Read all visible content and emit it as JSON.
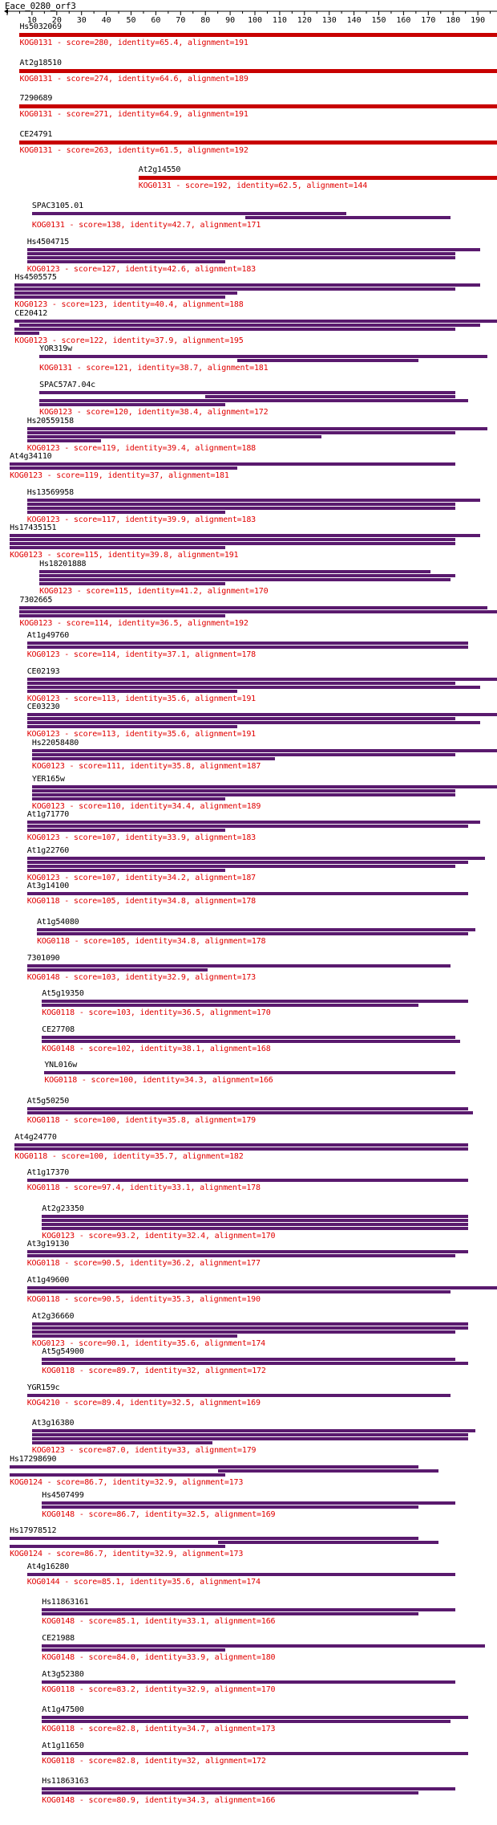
{
  "query": {
    "title": "Eace_0280_orf3",
    "length": 200,
    "axis_ticks": [
      10,
      20,
      30,
      40,
      50,
      60,
      70,
      80,
      90,
      100,
      110,
      120,
      130,
      140,
      150,
      160,
      170,
      180,
      190
    ]
  },
  "colors": {
    "kog0131": "#c80000",
    "other": "#5a1a6e",
    "label_text": "#e00000"
  },
  "hits": [
    {
      "name": "Hs5032069",
      "kog": "KOG0131",
      "score": "280",
      "identity": "65.4",
      "alignment": "191",
      "segments": [
        [
          5,
          198
        ]
      ]
    },
    {
      "name": "At2g18510",
      "kog": "KOG0131",
      "score": "274",
      "identity": "64.6",
      "alignment": "189",
      "segments": [
        [
          5,
          198
        ]
      ]
    },
    {
      "name": "7290689",
      "kog": "KOG0131",
      "score": "271",
      "identity": "64.9",
      "alignment": "191",
      "segments": [
        [
          5,
          198
        ]
      ]
    },
    {
      "name": "CE24791",
      "kog": "KOG0131",
      "score": "263",
      "identity": "61.5",
      "alignment": "192",
      "segments": [
        [
          5,
          198
        ]
      ]
    },
    {
      "name": "At2g14550",
      "kog": "KOG0131",
      "score": "192",
      "identity": "62.5",
      "alignment": "144",
      "segments": [
        [
          53,
          198
        ]
      ]
    },
    {
      "name": "SPAC3105.01",
      "kog": "KOG0131",
      "score": "138",
      "identity": "42.7",
      "alignment": "171",
      "segments": [
        [
          10,
          137
        ],
        [
          96,
          179
        ]
      ]
    },
    {
      "name": "Hs4504715",
      "kog": "KOG0123",
      "score": "127",
      "identity": "42.6",
      "alignment": "183",
      "segments": [
        [
          8,
          191
        ],
        [
          8,
          181
        ],
        [
          8,
          181
        ],
        [
          8,
          88
        ]
      ]
    },
    {
      "name": "Hs4505575",
      "kog": "KOG0123",
      "score": "123",
      "identity": "40.4",
      "alignment": "188",
      "segments": [
        [
          3,
          191
        ],
        [
          3,
          181
        ],
        [
          3,
          93
        ],
        [
          3,
          88
        ]
      ]
    },
    {
      "name": "CE20412",
      "kog": "KOG0123",
      "score": "122",
      "identity": "37.9",
      "alignment": "195",
      "segments": [
        [
          3,
          198
        ],
        [
          5,
          191
        ],
        [
          3,
          181
        ],
        [
          3,
          13
        ]
      ]
    },
    {
      "name": "YOR319w",
      "kog": "KOG0131",
      "score": "121",
      "identity": "38.7",
      "alignment": "181",
      "segments": [
        [
          13,
          194
        ],
        [
          93,
          166
        ]
      ]
    },
    {
      "name": "SPAC57A7.04c",
      "kog": "KOG0123",
      "score": "120",
      "identity": "38.4",
      "alignment": "172",
      "segments": [
        [
          13,
          181
        ],
        [
          80,
          181
        ],
        [
          13,
          186
        ],
        [
          13,
          88
        ]
      ]
    },
    {
      "name": "Hs20559158",
      "kog": "KOG0123",
      "score": "119",
      "identity": "39.4",
      "alignment": "188",
      "segments": [
        [
          8,
          194
        ],
        [
          8,
          181
        ],
        [
          8,
          127
        ],
        [
          8,
          38
        ]
      ]
    },
    {
      "name": "At4g34110",
      "kog": "KOG0123",
      "score": "119",
      "identity": "37",
      "alignment": "181",
      "segments": [
        [
          1,
          181
        ],
        [
          1,
          93
        ]
      ]
    },
    {
      "name": "Hs13569958",
      "kog": "KOG0123",
      "score": "117",
      "identity": "39.9",
      "alignment": "183",
      "segments": [
        [
          8,
          191
        ],
        [
          8,
          181
        ],
        [
          8,
          181
        ],
        [
          8,
          88
        ]
      ]
    },
    {
      "name": "Hs17435151",
      "kog": "KOG0123",
      "score": "115",
      "identity": "39.8",
      "alignment": "191",
      "segments": [
        [
          1,
          191
        ],
        [
          1,
          181
        ],
        [
          1,
          181
        ],
        [
          1,
          88
        ]
      ]
    },
    {
      "name": "Hs18201888",
      "kog": "KOG0123",
      "score": "115",
      "identity": "41.2",
      "alignment": "170",
      "segments": [
        [
          13,
          171
        ],
        [
          13,
          181
        ],
        [
          13,
          179
        ],
        [
          13,
          88
        ]
      ]
    },
    {
      "name": "7302665",
      "kog": "KOG0123",
      "score": "114",
      "identity": "36.5",
      "alignment": "192",
      "segments": [
        [
          5,
          194
        ],
        [
          5,
          198
        ],
        [
          5,
          88
        ]
      ]
    },
    {
      "name": "At1g49760",
      "kog": "KOG0123",
      "score": "114",
      "identity": "37.1",
      "alignment": "178",
      "segments": [
        [
          8,
          186
        ],
        [
          8,
          186
        ]
      ]
    },
    {
      "name": "CE02193",
      "kog": "KOG0123",
      "score": "113",
      "identity": "35.6",
      "alignment": "191",
      "segments": [
        [
          8,
          198
        ],
        [
          8,
          181
        ],
        [
          8,
          191
        ],
        [
          8,
          93
        ]
      ]
    },
    {
      "name": "CE03230",
      "kog": "KOG0123",
      "score": "113",
      "identity": "35.6",
      "alignment": "191",
      "segments": [
        [
          8,
          198
        ],
        [
          8,
          181
        ],
        [
          8,
          191
        ],
        [
          8,
          93
        ]
      ]
    },
    {
      "name": "Hs22058480",
      "kog": "KOG0123",
      "score": "111",
      "identity": "35.8",
      "alignment": "187",
      "segments": [
        [
          10,
          198
        ],
        [
          10,
          181
        ],
        [
          10,
          108
        ]
      ]
    },
    {
      "name": "YER165w",
      "kog": "KOG0123",
      "score": "110",
      "identity": "34.4",
      "alignment": "189",
      "segments": [
        [
          10,
          198
        ],
        [
          10,
          181
        ],
        [
          10,
          181
        ],
        [
          10,
          88
        ]
      ]
    },
    {
      "name": "At1g71770",
      "kog": "KOG0123",
      "score": "107",
      "identity": "33.9",
      "alignment": "183",
      "segments": [
        [
          8,
          191
        ],
        [
          8,
          186
        ],
        [
          8,
          88
        ]
      ]
    },
    {
      "name": "At1g22760",
      "kog": "KOG0123",
      "score": "107",
      "identity": "34.2",
      "alignment": "187",
      "segments": [
        [
          8,
          193
        ],
        [
          8,
          186
        ],
        [
          8,
          181
        ],
        [
          8,
          88
        ]
      ]
    },
    {
      "name": "At3g14100",
      "kog": "KOG0118",
      "score": "105",
      "identity": "34.8",
      "alignment": "178",
      "segments": [
        [
          8,
          186
        ]
      ]
    },
    {
      "name": "At1g54080",
      "kog": "KOG0118",
      "score": "105",
      "identity": "34.8",
      "alignment": "178",
      "segments": [
        [
          12,
          189
        ],
        [
          12,
          186
        ]
      ]
    },
    {
      "name": "7301090",
      "kog": "KOG0148",
      "score": "103",
      "identity": "32.9",
      "alignment": "173",
      "segments": [
        [
          8,
          179
        ],
        [
          8,
          81
        ]
      ]
    },
    {
      "name": "At5g19350",
      "kog": "KOG0118",
      "score": "103",
      "identity": "36.5",
      "alignment": "170",
      "segments": [
        [
          14,
          186
        ],
        [
          14,
          166
        ]
      ]
    },
    {
      "name": "CE27708",
      "kog": "KOG0148",
      "score": "102",
      "identity": "38.1",
      "alignment": "168",
      "segments": [
        [
          14,
          181
        ],
        [
          14,
          183
        ]
      ]
    },
    {
      "name": "YNL016w",
      "kog": "KOG0118",
      "score": "100",
      "identity": "34.3",
      "alignment": "166",
      "segments": [
        [
          15,
          181
        ]
      ]
    },
    {
      "name": "At5g50250",
      "kog": "KOG0118",
      "score": "100",
      "identity": "35.8",
      "alignment": "179",
      "segments": [
        [
          8,
          186
        ],
        [
          8,
          188
        ]
      ]
    },
    {
      "name": "At4g24770",
      "kog": "KOG0118",
      "score": "100",
      "identity": "35.7",
      "alignment": "182",
      "segments": [
        [
          3,
          186
        ],
        [
          3,
          186
        ]
      ]
    },
    {
      "name": "At1g17370",
      "kog": "KOG0118",
      "score": "97.4",
      "identity": "33.1",
      "alignment": "178",
      "segments": [
        [
          8,
          186
        ]
      ]
    },
    {
      "name": "At2g23350",
      "kog": "KOG0123",
      "score": "93.2",
      "identity": "32.4",
      "alignment": "170",
      "segments": [
        [
          14,
          186
        ],
        [
          14,
          186
        ],
        [
          14,
          186
        ],
        [
          14,
          186
        ]
      ]
    },
    {
      "name": "At3g19130",
      "kog": "KOG0118",
      "score": "90.5",
      "identity": "36.2",
      "alignment": "177",
      "segments": [
        [
          8,
          186
        ],
        [
          8,
          181
        ]
      ]
    },
    {
      "name": "At1g49600",
      "kog": "KOG0118",
      "score": "90.5",
      "identity": "35.3",
      "alignment": "190",
      "segments": [
        [
          8,
          198
        ],
        [
          8,
          179
        ]
      ]
    },
    {
      "name": "At2g36660",
      "kog": "KOG0123",
      "score": "90.1",
      "identity": "35.6",
      "alignment": "174",
      "segments": [
        [
          10,
          186
        ],
        [
          10,
          186
        ],
        [
          10,
          181
        ],
        [
          10,
          93
        ]
      ]
    },
    {
      "name": "At5g54900",
      "kog": "KOG0118",
      "score": "89.7",
      "identity": "32",
      "alignment": "172",
      "segments": [
        [
          14,
          181
        ],
        [
          14,
          186
        ]
      ]
    },
    {
      "name": "YGR159c",
      "kog": "KOG4210",
      "score": "89.4",
      "identity": "32.5",
      "alignment": "169",
      "segments": [
        [
          8,
          179
        ]
      ]
    },
    {
      "name": "At3g16380",
      "kog": "KOG0123",
      "score": "87.0",
      "identity": "33",
      "alignment": "179",
      "segments": [
        [
          10,
          189
        ],
        [
          10,
          186
        ],
        [
          10,
          186
        ],
        [
          10,
          83
        ]
      ]
    },
    {
      "name": "Hs17298690",
      "kog": "KOG0124",
      "score": "86.7",
      "identity": "32.9",
      "alignment": "173",
      "segments": [
        [
          1,
          166
        ],
        [
          85,
          174
        ],
        [
          1,
          88
        ]
      ]
    },
    {
      "name": "Hs4507499",
      "kog": "KOG0148",
      "score": "86.7",
      "identity": "32.5",
      "alignment": "169",
      "segments": [
        [
          14,
          181
        ],
        [
          14,
          166
        ]
      ]
    },
    {
      "name": "Hs17978512",
      "kog": "KOG0124",
      "score": "86.7",
      "identity": "32.9",
      "alignment": "173",
      "segments": [
        [
          1,
          166
        ],
        [
          85,
          174
        ],
        [
          1,
          88
        ]
      ]
    },
    {
      "name": "At4g16280",
      "kog": "KOG0144",
      "score": "85.1",
      "identity": "35.6",
      "alignment": "174",
      "segments": [
        [
          8,
          181
        ]
      ]
    },
    {
      "name": "Hs11863161",
      "kog": "KOG0148",
      "score": "85.1",
      "identity": "33.1",
      "alignment": "166",
      "segments": [
        [
          14,
          181
        ],
        [
          14,
          166
        ]
      ]
    },
    {
      "name": "CE21988",
      "kog": "KOG0148",
      "score": "84.0",
      "identity": "33.9",
      "alignment": "180",
      "segments": [
        [
          14,
          193
        ],
        [
          14,
          88
        ]
      ]
    },
    {
      "name": "At3g52380",
      "kog": "KOG0118",
      "score": "83.2",
      "identity": "32.9",
      "alignment": "170",
      "segments": [
        [
          14,
          181
        ]
      ]
    },
    {
      "name": "At1g47500",
      "kog": "KOG0118",
      "score": "82.8",
      "identity": "34.7",
      "alignment": "173",
      "segments": [
        [
          14,
          186
        ],
        [
          14,
          179
        ]
      ]
    },
    {
      "name": "At1g11650",
      "kog": "KOG0118",
      "score": "82.8",
      "identity": "32",
      "alignment": "172",
      "segments": [
        [
          14,
          186
        ]
      ]
    },
    {
      "name": "Hs11863163",
      "kog": "KOG0148",
      "score": "80.9",
      "identity": "34.3",
      "alignment": "166",
      "segments": [
        [
          14,
          181
        ],
        [
          14,
          166
        ]
      ]
    }
  ]
}
